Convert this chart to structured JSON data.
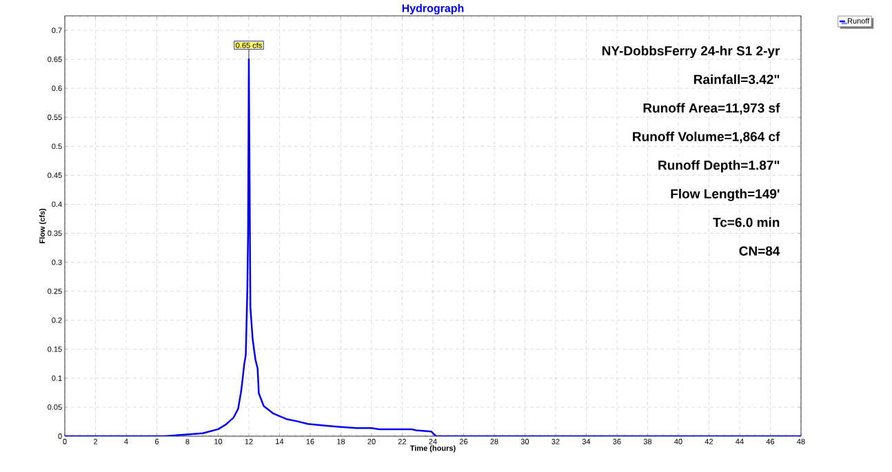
{
  "chart_data": {
    "type": "line",
    "title": "Hydrograph",
    "xlabel": "Time  (hours)",
    "ylabel": "Flow  (cfs)",
    "x": [
      0,
      6.5,
      7,
      8,
      9,
      9.5,
      10,
      10.5,
      11,
      11.3,
      11.5,
      11.6,
      11.7,
      11.8,
      11.9,
      11.95,
      12,
      12.1,
      12.25,
      12.43,
      12.57,
      12.65,
      12.97,
      13.6,
      14.5,
      15.1,
      15.85,
      17,
      17.9,
      19,
      20,
      20.5,
      22.6,
      22.9,
      23.9,
      24.2,
      48
    ],
    "series": [
      {
        "name": "Runoff",
        "color": "#0000ff",
        "values": [
          0,
          0,
          0.001,
          0.003,
          0.005,
          0.0085,
          0.012,
          0.02,
          0.032,
          0.047,
          0.078,
          0.1,
          0.124,
          0.14,
          0.25,
          0.35,
          0.65,
          0.222,
          0.167,
          0.132,
          0.117,
          0.074,
          0.052,
          0.039,
          0.029,
          0.026,
          0.021,
          0.018,
          0.016,
          0.014,
          0.014,
          0.012,
          0.012,
          0.01,
          0.008,
          0,
          0
        ]
      }
    ],
    "xlim": [
      0,
      48
    ],
    "ylim": [
      0,
      0.725
    ],
    "xticks": [
      0,
      2,
      4,
      6,
      8,
      10,
      12,
      14,
      16,
      18,
      20,
      22,
      24,
      26,
      28,
      30,
      32,
      34,
      36,
      38,
      40,
      42,
      44,
      46,
      48
    ],
    "yticks": [
      0,
      0.05,
      0.1,
      0.15,
      0.2,
      0.25,
      0.3,
      0.35,
      0.4,
      0.45,
      0.5,
      0.55,
      0.6,
      0.65,
      0.7
    ],
    "grid": true,
    "legend": "top right",
    "annotations": [
      {
        "text": "0.65 cfs",
        "x": 12,
        "y": 0.65
      },
      "NY-DobbsFerry 24-hr S1 2-yr",
      "Rainfall=3.42\"",
      "Runoff Area=11,973 sf",
      "Runoff Volume=1,864 cf",
      "Runoff Depth=1.87\"",
      "Flow Length=149'",
      "Tc=6.0 min",
      "CN=84"
    ]
  }
}
